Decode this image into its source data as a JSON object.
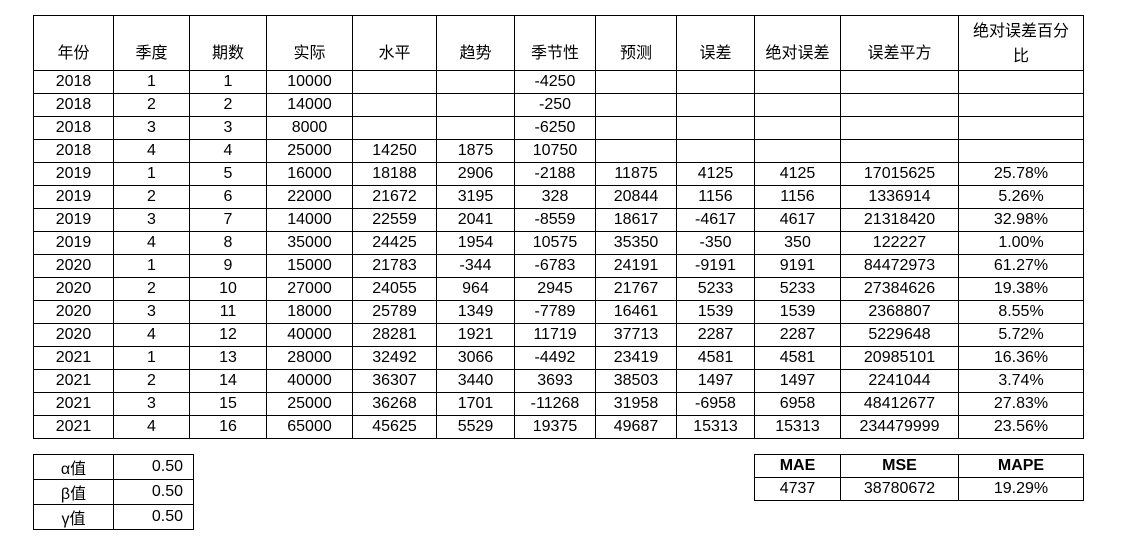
{
  "table": {
    "columns": [
      "年份",
      "季度",
      "期数",
      "实际",
      "水平",
      "趋势",
      "季节性",
      "预测",
      "误差",
      "绝对误差",
      "误差平方",
      "绝对误差百分比"
    ],
    "rows": [
      [
        "2018",
        "1",
        "1",
        "10000",
        "",
        "",
        "-4250",
        "",
        "",
        "",
        "",
        ""
      ],
      [
        "2018",
        "2",
        "2",
        "14000",
        "",
        "",
        "-250",
        "",
        "",
        "",
        "",
        ""
      ],
      [
        "2018",
        "3",
        "3",
        "8000",
        "",
        "",
        "-6250",
        "",
        "",
        "",
        "",
        ""
      ],
      [
        "2018",
        "4",
        "4",
        "25000",
        "14250",
        "1875",
        "10750",
        "",
        "",
        "",
        "",
        ""
      ],
      [
        "2019",
        "1",
        "5",
        "16000",
        "18188",
        "2906",
        "-2188",
        "11875",
        "4125",
        "4125",
        "17015625",
        "25.78%"
      ],
      [
        "2019",
        "2",
        "6",
        "22000",
        "21672",
        "3195",
        "328",
        "20844",
        "1156",
        "1156",
        "1336914",
        "5.26%"
      ],
      [
        "2019",
        "3",
        "7",
        "14000",
        "22559",
        "2041",
        "-8559",
        "18617",
        "-4617",
        "4617",
        "21318420",
        "32.98%"
      ],
      [
        "2019",
        "4",
        "8",
        "35000",
        "24425",
        "1954",
        "10575",
        "35350",
        "-350",
        "350",
        "122227",
        "1.00%"
      ],
      [
        "2020",
        "1",
        "9",
        "15000",
        "21783",
        "-344",
        "-6783",
        "24191",
        "-9191",
        "9191",
        "84472973",
        "61.27%"
      ],
      [
        "2020",
        "2",
        "10",
        "27000",
        "24055",
        "964",
        "2945",
        "21767",
        "5233",
        "5233",
        "27384626",
        "19.38%"
      ],
      [
        "2020",
        "3",
        "11",
        "18000",
        "25789",
        "1349",
        "-7789",
        "16461",
        "1539",
        "1539",
        "2368807",
        "8.55%"
      ],
      [
        "2020",
        "4",
        "12",
        "40000",
        "28281",
        "1921",
        "11719",
        "37713",
        "2287",
        "2287",
        "5229648",
        "5.72%"
      ],
      [
        "2021",
        "1",
        "13",
        "28000",
        "32492",
        "3066",
        "-4492",
        "23419",
        "4581",
        "4581",
        "20985101",
        "16.36%"
      ],
      [
        "2021",
        "2",
        "14",
        "40000",
        "36307",
        "3440",
        "3693",
        "38503",
        "1497",
        "1497",
        "2241044",
        "3.74%"
      ],
      [
        "2021",
        "3",
        "15",
        "25000",
        "36268",
        "1701",
        "-11268",
        "31958",
        "-6958",
        "6958",
        "48412677",
        "27.83%"
      ],
      [
        "2021",
        "4",
        "16",
        "65000",
        "45625",
        "5529",
        "19375",
        "49687",
        "15313",
        "15313",
        "234479999",
        "23.56%"
      ]
    ]
  },
  "parameters": {
    "items": [
      {
        "label": "α值",
        "value": "0.50"
      },
      {
        "label": "β值",
        "value": "0.50"
      },
      {
        "label": "γ值",
        "value": "0.50"
      }
    ]
  },
  "metrics": {
    "headers": [
      "MAE",
      "MSE",
      "MAPE"
    ],
    "values": [
      "4737",
      "38780672",
      "19.29%"
    ]
  },
  "colors": {
    "border": "#000000",
    "text": "#000000",
    "background": "#ffffff"
  }
}
